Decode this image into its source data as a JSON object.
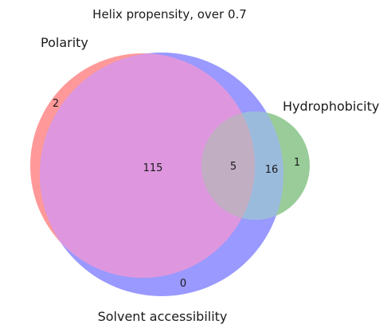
{
  "title": "Helix propensity, over 0.7",
  "sets": {
    "polarity": {
      "label": "Polarity",
      "color": "#ff9999"
    },
    "solvent": {
      "label": "Solvent accessibility",
      "color": "#9999ff"
    },
    "hydro": {
      "label": "Hydrophobicity",
      "color": "#99cc99"
    }
  },
  "regions": {
    "polarity_only": "2",
    "solvent_only": "0",
    "hydro_only": "1",
    "polarity_solvent": "115",
    "all_three": "5",
    "solvent_hydro": "16"
  },
  "overlap_colors": {
    "polarity_solvent": "#de97de",
    "all_three": "#c2aec2",
    "solvent_hydro": "#9bbbdd"
  }
}
